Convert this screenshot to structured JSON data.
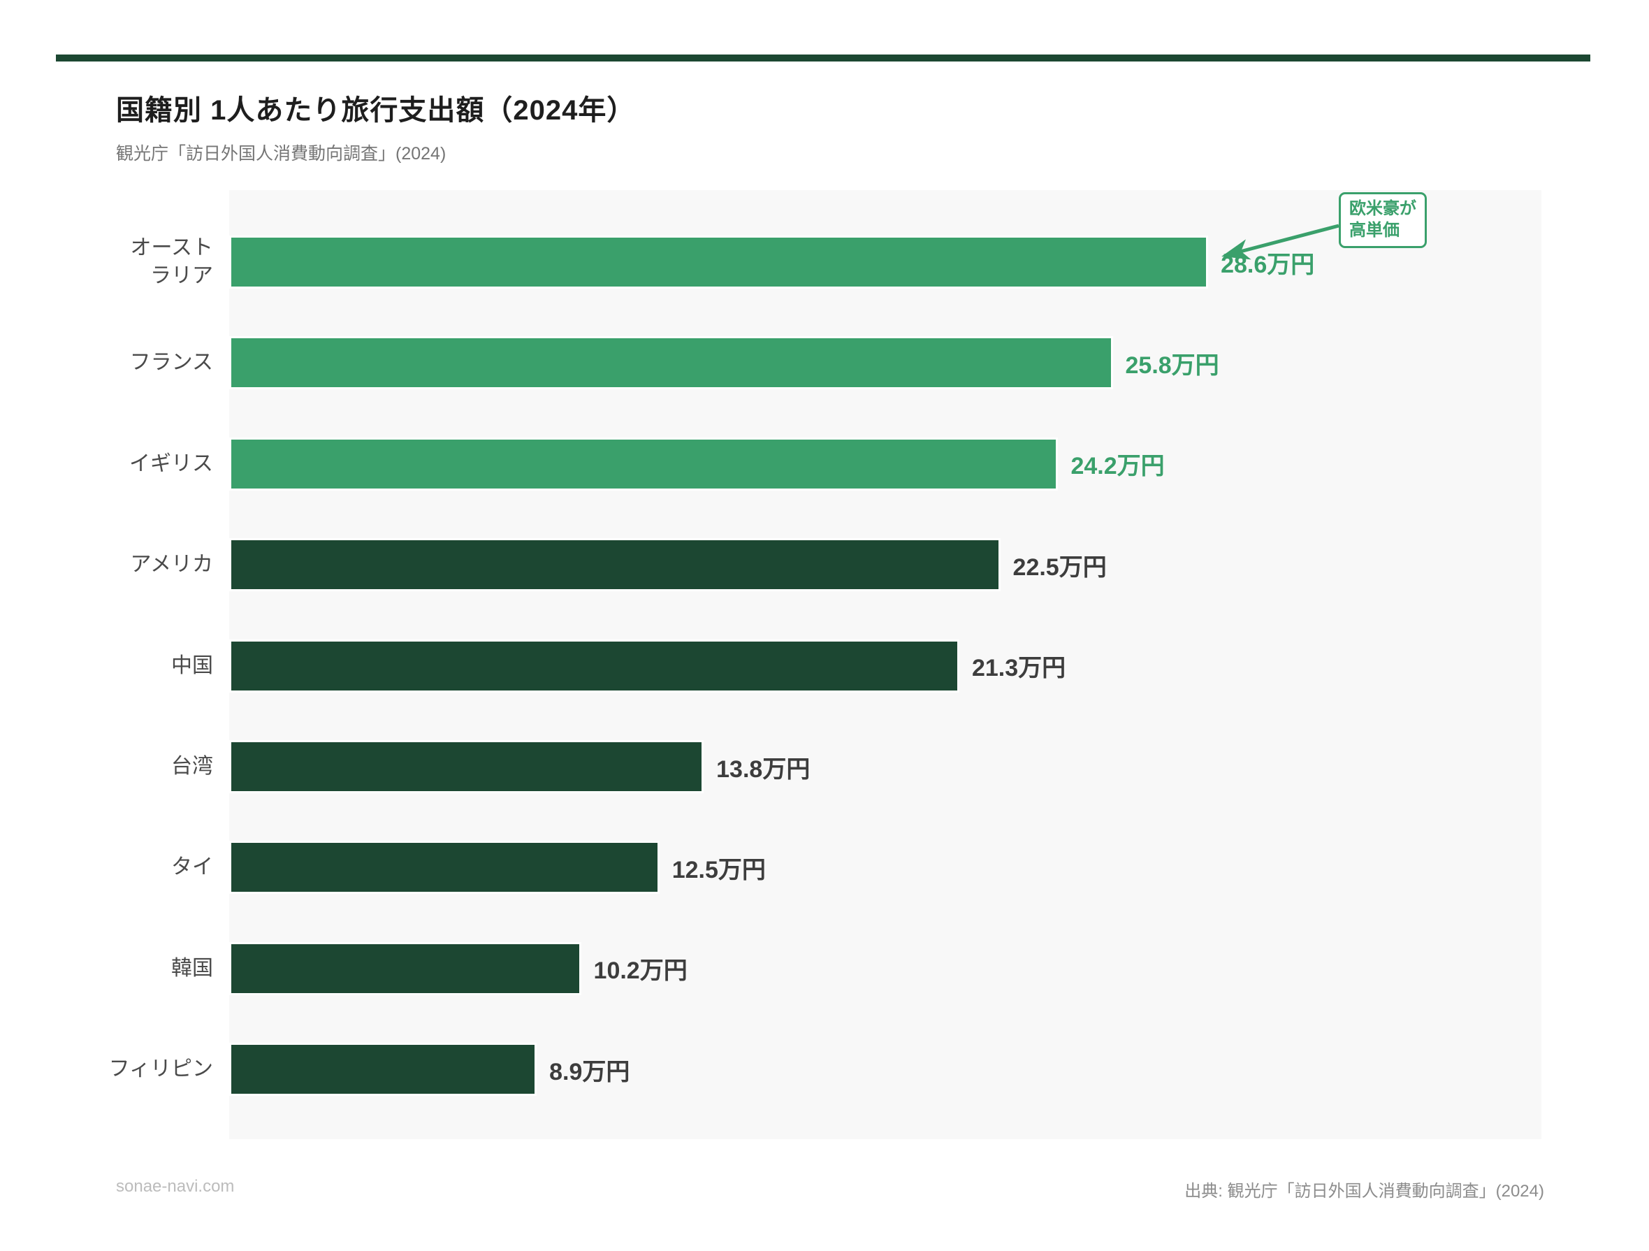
{
  "page": {
    "accent_rule_color": "#1C4732",
    "background": "#ffffff",
    "plot_background": "#f8f8f8"
  },
  "header": {
    "title": "国籍別 1人あたり旅行支出額（2024年）",
    "subtitle": "観光庁「訪日外国人消費動向調査」(2024)"
  },
  "chart_data": {
    "type": "bar",
    "orientation": "horizontal",
    "title": "国籍別 1人あたり旅行支出額（2024年）",
    "source": "観光庁「訪日外国人消費動向調査」(2024)",
    "unit": "万円",
    "xlim": [
      0,
      38.5
    ],
    "grid": false,
    "categories": [
      "オーストラリア",
      "フランス",
      "イギリス",
      "アメリカ",
      "中国",
      "台湾",
      "タイ",
      "韓国",
      "フィリピン"
    ],
    "category_label_lines": [
      [
        "オースト",
        "ラリア"
      ],
      [
        "フランス"
      ],
      [
        "イギリス"
      ],
      [
        "アメリカ"
      ],
      [
        "中国"
      ],
      [
        "台湾"
      ],
      [
        "タイ"
      ],
      [
        "韓国"
      ],
      [
        "フィリピン"
      ]
    ],
    "values": [
      28.6,
      25.8,
      24.2,
      22.5,
      21.3,
      13.8,
      12.5,
      10.2,
      8.9
    ],
    "value_labels": [
      "28.6万円",
      "25.8万円",
      "24.2万円",
      "22.5万円",
      "21.3万円",
      "13.8万円",
      "12.5万円",
      "10.2万円",
      "8.9万円"
    ],
    "highlight_count": 3,
    "colors": {
      "bar_highlight": "#3AA06B",
      "bar_default": "#1C4732",
      "value_label_highlight": "#3AA06B",
      "value_label_default": "#3D3D3D"
    },
    "annotation": {
      "lines": [
        "欧米豪が",
        "高単価"
      ],
      "color": "#3AA06B",
      "arrow_target_category": "オーストラリア"
    }
  },
  "footer": {
    "left": "sonae-navi.com",
    "right": "出典: 観光庁「訪日外国人消費動向調査」(2024)"
  }
}
